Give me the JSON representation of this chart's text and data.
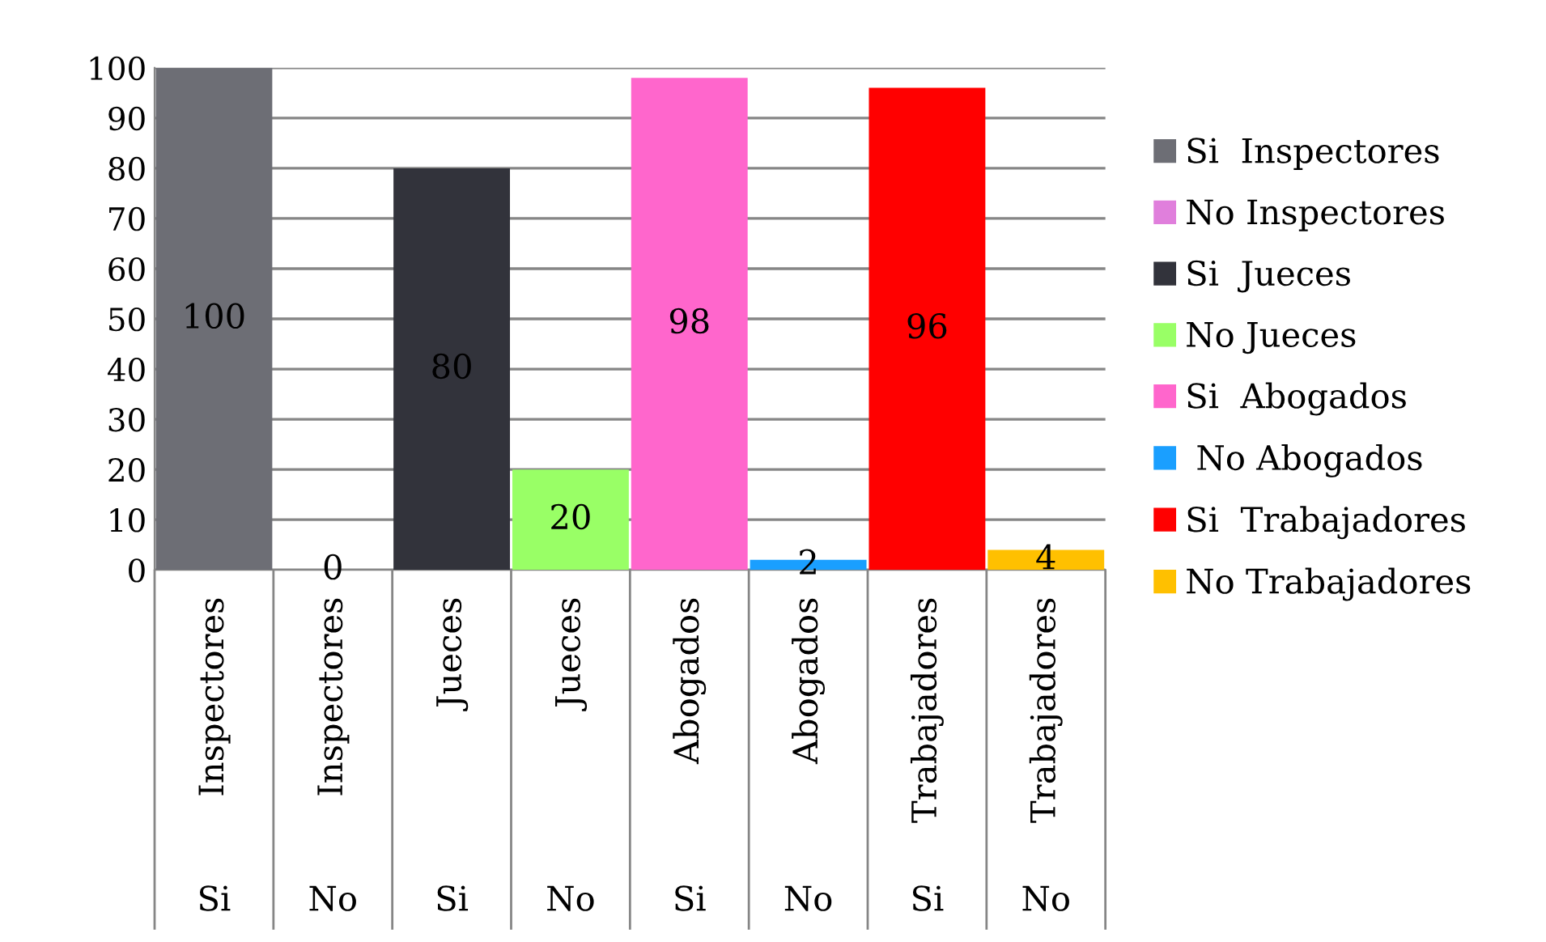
{
  "chart_data": {
    "type": "bar",
    "categories": [
      "Inspectores",
      "Inspectores",
      "Jueces",
      "Jueces",
      "Abogados",
      "Abogados",
      "Trabajadores",
      "Trabajadores"
    ],
    "annotations": [
      "Si",
      "No",
      "Si",
      "No",
      "Si",
      "No",
      "Si",
      "No"
    ],
    "series": [
      {
        "name": "Si  Inspectores",
        "color": "#6d6e75",
        "values": [
          100,
          null,
          null,
          null,
          null,
          null,
          null,
          null
        ]
      },
      {
        "name": "No Inspectores",
        "color": "#e07fdc",
        "values": [
          null,
          0,
          null,
          null,
          null,
          null,
          null,
          null
        ]
      },
      {
        "name": "Si  Jueces",
        "color": "#32333b",
        "values": [
          null,
          null,
          80,
          null,
          null,
          null,
          null,
          null
        ]
      },
      {
        "name": "No Jueces",
        "color": "#99ff66",
        "values": [
          null,
          null,
          null,
          20,
          null,
          null,
          null,
          null
        ]
      },
      {
        "name": "Si  Abogados",
        "color": "#ff66cc",
        "values": [
          null,
          null,
          null,
          null,
          98,
          null,
          null,
          null
        ]
      },
      {
        "name": " No Abogados",
        "color": "#1a9fff",
        "values": [
          null,
          null,
          null,
          null,
          null,
          2,
          null,
          null
        ]
      },
      {
        "name": "Si  Trabajadores",
        "color": "#ff0000",
        "values": [
          null,
          null,
          null,
          null,
          null,
          null,
          96,
          null
        ]
      },
      {
        "name": "No Trabajadores",
        "color": "#ffc000",
        "values": [
          null,
          null,
          null,
          null,
          null,
          null,
          null,
          4
        ]
      }
    ],
    "ylim": [
      0,
      100
    ],
    "yticks": [
      0,
      10,
      20,
      30,
      40,
      50,
      60,
      70,
      80,
      90,
      100
    ],
    "grid": "y",
    "legend": "right",
    "data_labels": true
  }
}
